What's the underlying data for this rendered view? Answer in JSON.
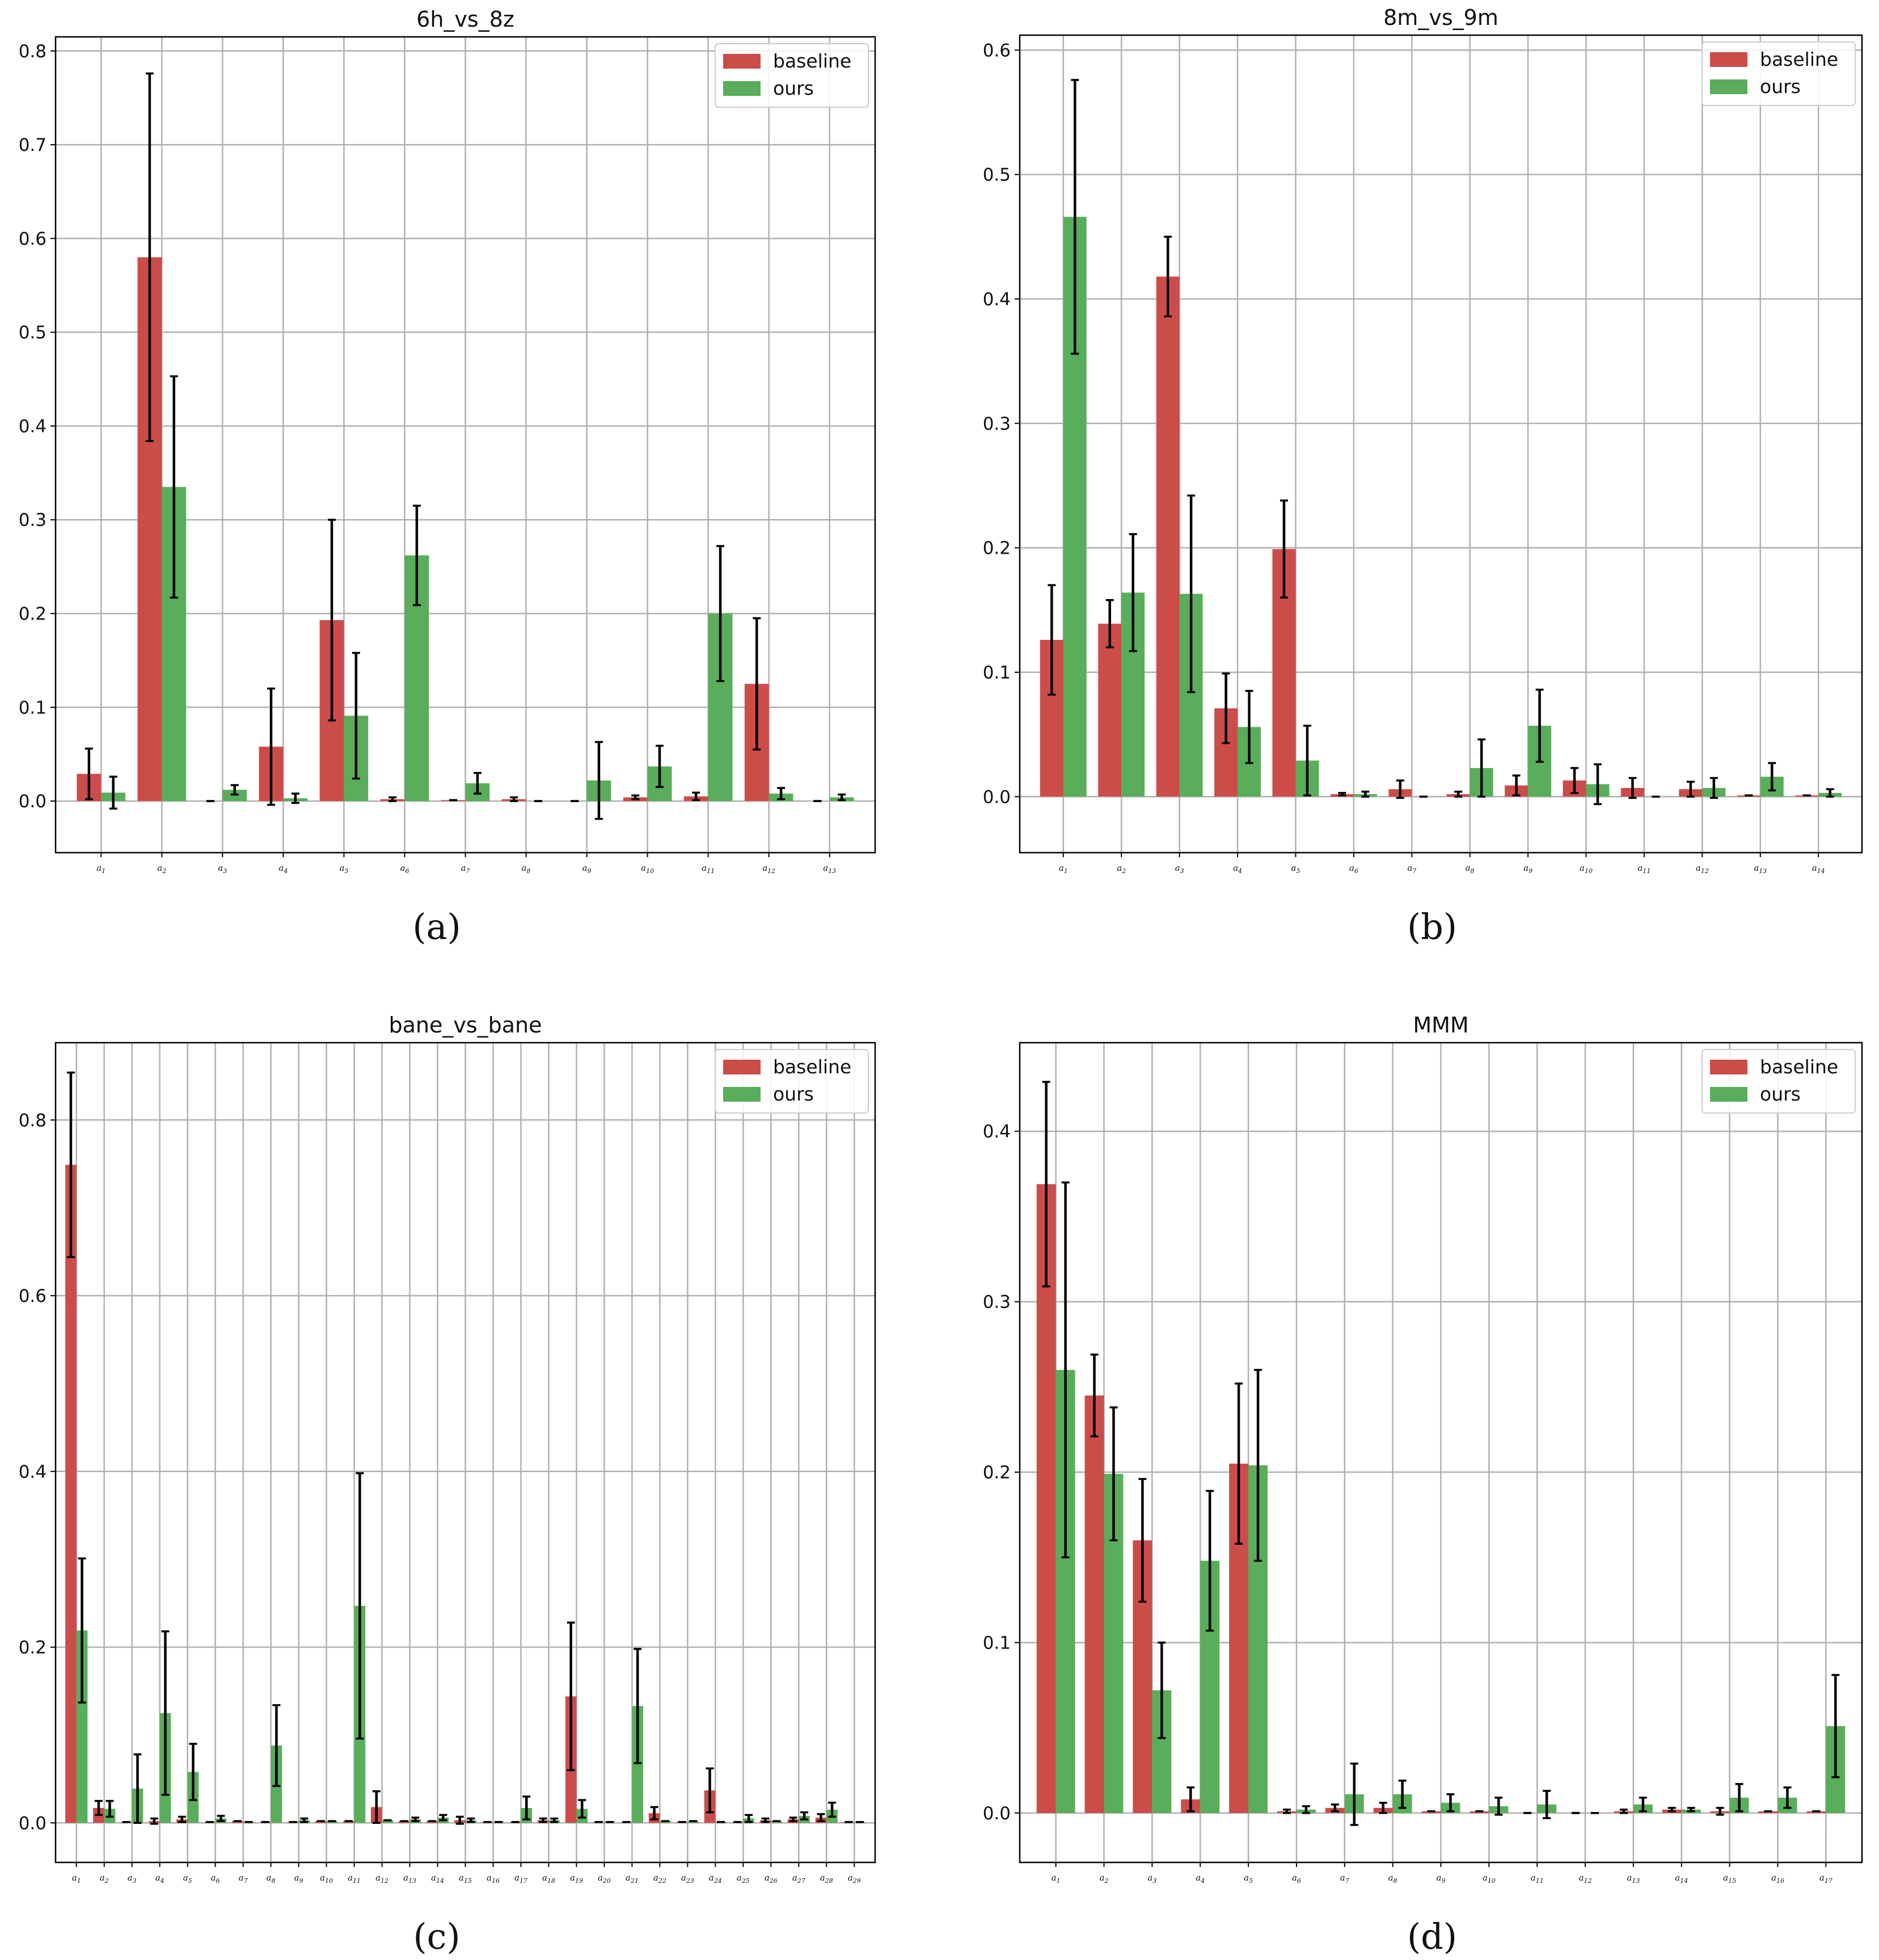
{
  "figure": {
    "colors": {
      "baseline": "#cc4c4a",
      "ours": "#5aad5a",
      "grid": "#b0b0b0",
      "errorbar": "#000000"
    },
    "legend_labels": [
      "baseline",
      "ours"
    ]
  },
  "chart_data": [
    {
      "type": "bar",
      "caption": "(a)",
      "title": "6h_vs_8z",
      "categories": [
        "a1",
        "a2",
        "a3",
        "a4",
        "a5",
        "a6",
        "a7",
        "a8",
        "a9",
        "a10",
        "a11",
        "a12",
        "a13"
      ],
      "ylim": [
        -0.055,
        0.815
      ],
      "yticks": [
        0.0,
        0.1,
        0.2,
        0.3,
        0.4,
        0.5,
        0.6,
        0.7,
        0.8
      ],
      "legend": "top-right",
      "series": [
        {
          "name": "baseline",
          "values": [
            0.029,
            0.58,
            0.0,
            0.058,
            0.193,
            0.002,
            0.001,
            0.002,
            0.0,
            0.004,
            0.005,
            0.125,
            0.0
          ],
          "errors": [
            0.027,
            0.196,
            0.0,
            0.062,
            0.107,
            0.002,
            0.0,
            0.002,
            0.0,
            0.002,
            0.004,
            0.07,
            0.0
          ]
        },
        {
          "name": "ours",
          "values": [
            0.009,
            0.335,
            0.012,
            0.003,
            0.091,
            0.262,
            0.019,
            0.0,
            0.022,
            0.037,
            0.2,
            0.008,
            0.004
          ],
          "errors": [
            0.017,
            0.118,
            0.005,
            0.005,
            0.067,
            0.053,
            0.011,
            0.0,
            0.041,
            0.022,
            0.072,
            0.006,
            0.003
          ]
        }
      ]
    },
    {
      "type": "bar",
      "caption": "(b)",
      "title": "8m_vs_9m",
      "categories": [
        "a1",
        "a2",
        "a3",
        "a4",
        "a5",
        "a6",
        "a7",
        "a8",
        "a9",
        "a10",
        "a11",
        "a12",
        "a13",
        "a14"
      ],
      "ylim": [
        -0.045,
        0.612
      ],
      "yticks": [
        0.0,
        0.1,
        0.2,
        0.3,
        0.4,
        0.5,
        0.6
      ],
      "legend": "top-right",
      "series": [
        {
          "name": "baseline",
          "values": [
            0.126,
            0.139,
            0.418,
            0.071,
            0.199,
            0.002,
            0.006,
            0.002,
            0.009,
            0.013,
            0.007,
            0.006,
            0.001,
            0.001
          ],
          "errors": [
            0.044,
            0.019,
            0.032,
            0.028,
            0.039,
            0.001,
            0.007,
            0.002,
            0.008,
            0.01,
            0.008,
            0.006,
            0.0,
            0.0
          ]
        },
        {
          "name": "ours",
          "values": [
            0.466,
            0.164,
            0.163,
            0.056,
            0.029,
            0.002,
            0.0,
            0.023,
            0.057,
            0.01,
            0.0,
            0.007,
            0.016,
            0.003
          ],
          "errors": [
            0.11,
            0.047,
            0.079,
            0.029,
            0.028,
            0.002,
            0.0,
            0.023,
            0.029,
            0.016,
            0.0,
            0.008,
            0.011,
            0.003
          ]
        }
      ]
    },
    {
      "type": "bar",
      "caption": "(c)",
      "title": "bane_vs_bane",
      "categories": [
        "a1",
        "a2",
        "a3",
        "a4",
        "a5",
        "a6",
        "a7",
        "a8",
        "a9",
        "a10",
        "a11",
        "a12",
        "a13",
        "a14",
        "a15",
        "a16",
        "a17",
        "a18",
        "a19",
        "a20",
        "a21",
        "a22",
        "a23",
        "a24",
        "a25",
        "a26",
        "a27",
        "a28",
        "a29"
      ],
      "ylim": [
        -0.045,
        0.888
      ],
      "yticks": [
        0.0,
        0.2,
        0.4,
        0.6,
        0.8
      ],
      "legend": "top-right",
      "series": [
        {
          "name": "baseline",
          "values": [
            0.749,
            0.017,
            0.001,
            0.002,
            0.004,
            0.001,
            0.002,
            0.001,
            0.001,
            0.002,
            0.002,
            0.018,
            0.002,
            0.002,
            0.003,
            0.001,
            0.001,
            0.003,
            0.144,
            0.001,
            0.001,
            0.011,
            0.001,
            0.037,
            0.001,
            0.003,
            0.004,
            0.006,
            0.001
          ],
          "errors": [
            0.105,
            0.008,
            0.0,
            0.003,
            0.003,
            0.0,
            0.0,
            0.0,
            0.0,
            0.0,
            0.0,
            0.018,
            0.0,
            0.0,
            0.004,
            0.0,
            0.0,
            0.002,
            0.084,
            0.0,
            0.0,
            0.007,
            0.0,
            0.025,
            0.0,
            0.002,
            0.002,
            0.004,
            0.0
          ]
        },
        {
          "name": "ours",
          "values": [
            0.219,
            0.016,
            0.039,
            0.125,
            0.058,
            0.005,
            0.001,
            0.088,
            0.003,
            0.002,
            0.247,
            0.003,
            0.004,
            0.006,
            0.003,
            0.001,
            0.017,
            0.003,
            0.016,
            0.001,
            0.133,
            0.002,
            0.002,
            0.001,
            0.005,
            0.002,
            0.008,
            0.015,
            0.001
          ],
          "errors": [
            0.082,
            0.009,
            0.039,
            0.093,
            0.032,
            0.003,
            0.0,
            0.046,
            0.002,
            0.0,
            0.151,
            0.0,
            0.002,
            0.003,
            0.002,
            0.0,
            0.013,
            0.002,
            0.01,
            0.0,
            0.065,
            0.0,
            0.0,
            0.0,
            0.004,
            0.0,
            0.004,
            0.008,
            0.0
          ]
        }
      ]
    },
    {
      "type": "bar",
      "caption": "(d)",
      "title": "MMM",
      "categories": [
        "a1",
        "a2",
        "a3",
        "a4",
        "a5",
        "a6",
        "a7",
        "a8",
        "a9",
        "a10",
        "a11",
        "a12",
        "a13",
        "a14",
        "a15",
        "a16",
        "a17"
      ],
      "ylim": [
        -0.029,
        0.452
      ],
      "yticks": [
        0.0,
        0.1,
        0.2,
        0.3,
        0.4
      ],
      "legend": "top-right",
      "series": [
        {
          "name": "baseline",
          "values": [
            0.369,
            0.245,
            0.16,
            0.008,
            0.205,
            0.001,
            0.003,
            0.003,
            0.001,
            0.001,
            0.0,
            0.0,
            0.001,
            0.002,
            0.001,
            0.001,
            0.001
          ],
          "errors": [
            0.06,
            0.024,
            0.036,
            0.007,
            0.047,
            0.001,
            0.002,
            0.003,
            0.0,
            0.0,
            0.0,
            0.0,
            0.001,
            0.001,
            0.002,
            0.0,
            0.0
          ]
        },
        {
          "name": "ours",
          "values": [
            0.26,
            0.199,
            0.072,
            0.148,
            0.204,
            0.002,
            0.011,
            0.011,
            0.006,
            0.004,
            0.005,
            0.0,
            0.005,
            0.002,
            0.009,
            0.009,
            0.051
          ],
          "errors": [
            0.11,
            0.039,
            0.028,
            0.041,
            0.056,
            0.002,
            0.018,
            0.008,
            0.005,
            0.005,
            0.008,
            0.0,
            0.004,
            0.001,
            0.008,
            0.006,
            0.03
          ]
        }
      ]
    }
  ]
}
